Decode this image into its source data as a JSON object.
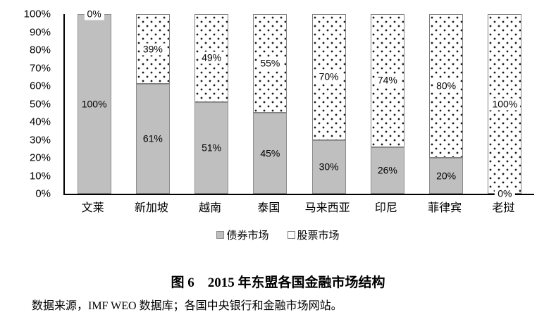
{
  "figure": {
    "title": "图 6　2015 年东盟各国金融市场结构",
    "source": "数据来源，IMF WEO 数据库；各国中央银行和金融市场网站。"
  },
  "chart_data": {
    "type": "bar",
    "stacked": true,
    "categories": [
      "文莱",
      "新加坡",
      "越南",
      "泰国",
      "马来西亚",
      "印尼",
      "菲律宾",
      "老挝"
    ],
    "series": [
      {
        "name": "债券市场",
        "pattern": "solid-gray",
        "values": [
          100,
          61,
          51,
          45,
          30,
          26,
          20,
          0
        ],
        "labels": [
          "100%",
          "61%",
          "51%",
          "45%",
          "30%",
          "26%",
          "20%",
          "0%"
        ]
      },
      {
        "name": "股票市场",
        "pattern": "dotted-white",
        "values": [
          0,
          39,
          49,
          55,
          70,
          74,
          80,
          100
        ],
        "labels": [
          "0%",
          "39%",
          "49%",
          "55%",
          "70%",
          "74%",
          "80%",
          "100%"
        ]
      }
    ],
    "y_axis": {
      "min": 0,
      "max": 100,
      "ticks": [
        "100%",
        "90%",
        "80%",
        "70%",
        "60%",
        "50%",
        "40%",
        "30%",
        "20%",
        "10%",
        "0%"
      ]
    },
    "gridlines": false,
    "legend_position": "bottom",
    "colors": {
      "bond_fill": "#bfbfbf",
      "bond_border": "#8c8c8c",
      "stock_fill": "#ffffff",
      "stock_border": "#7f7f7f",
      "dot": "#1a1a1a",
      "axis": "#000000",
      "text": "#000000"
    }
  }
}
